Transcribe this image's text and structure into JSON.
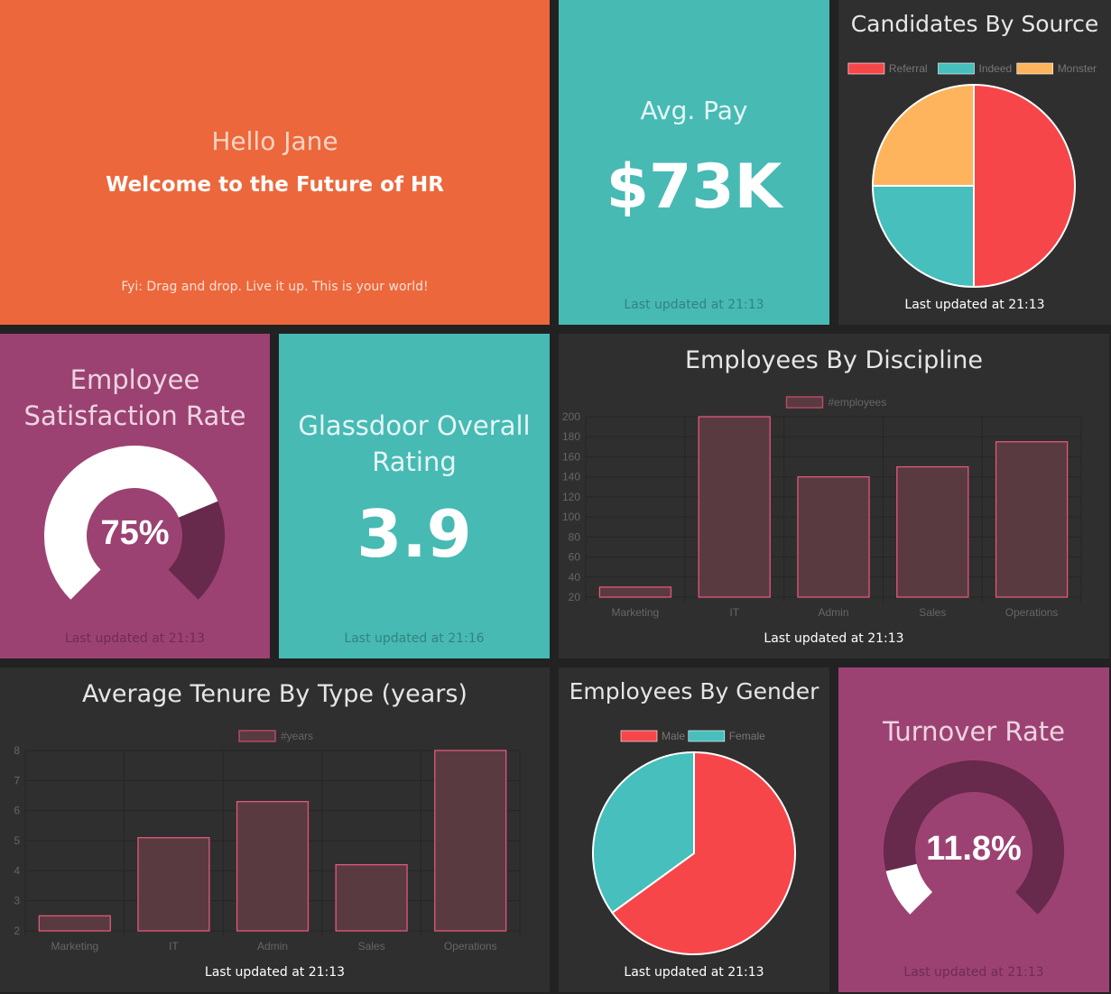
{
  "welcome": {
    "greeting": "Hello Jane",
    "subtitle": "Welcome to the Future of HR",
    "note": "Fyi: Drag and drop. Live it up. This is your world!"
  },
  "avg_pay": {
    "title": "Avg. Pay",
    "value": "$73K",
    "updated": "Last updated at 21:13"
  },
  "candidates": {
    "title": "Candidates By Source",
    "updated": "Last updated at 21:13"
  },
  "satisfaction": {
    "title_line1": "Employee",
    "title_line2": "Satisfaction Rate",
    "value": "75%",
    "percent": 75,
    "updated": "Last updated at 21:13"
  },
  "glassdoor": {
    "title_line1": "Glassdoor Overall",
    "title_line2": "Rating",
    "value": "3.9",
    "updated": "Last updated at 21:16"
  },
  "discipline": {
    "title": "Employees By Discipline",
    "updated": "Last updated at 21:13"
  },
  "tenure": {
    "title": "Average Tenure By Type (years)",
    "updated": "Last updated at 21:13"
  },
  "gender": {
    "title": "Employees By Gender",
    "updated": "Last updated at 21:13"
  },
  "turnover": {
    "title": "Turnover Rate",
    "value": "11.8%",
    "percent": 11.8,
    "updated": "Last updated at 21:13"
  },
  "colors": {
    "orange": "#ec673b",
    "teal": "#47bab4",
    "purple": "#9c4272",
    "dark": "#2f2f2f",
    "red": "#f7464a",
    "cyan": "#46bfbd",
    "yellow": "#fdb45c",
    "bar_stroke": "#e0587a"
  },
  "chart_data": [
    {
      "type": "pie",
      "labels": [
        "Referral",
        "Indeed",
        "Monster"
      ],
      "values": [
        50,
        25,
        25
      ],
      "legend": "top"
    },
    {
      "type": "bar",
      "categories": [
        "Marketing",
        "IT",
        "Admin",
        "Sales",
        "Operations"
      ],
      "series": [
        {
          "name": "#employees",
          "values": [
            30,
            200,
            140,
            150,
            175
          ]
        }
      ],
      "ylim": [
        20,
        200
      ],
      "yticks": [
        20,
        40,
        60,
        80,
        100,
        120,
        140,
        160,
        180,
        200
      ],
      "grid": true,
      "legend": "top"
    },
    {
      "type": "bar",
      "categories": [
        "Marketing",
        "IT",
        "Admin",
        "Sales",
        "Operations"
      ],
      "series": [
        {
          "name": "#years",
          "values": [
            2.5,
            5.1,
            6.3,
            4.2,
            8
          ]
        }
      ],
      "ylim": [
        2,
        8
      ],
      "yticks": [
        2,
        3,
        4,
        5,
        6,
        7,
        8
      ],
      "grid": true,
      "legend": "top"
    },
    {
      "type": "pie",
      "labels": [
        "Male",
        "Female"
      ],
      "values": [
        65,
        35
      ],
      "legend": "top"
    }
  ]
}
